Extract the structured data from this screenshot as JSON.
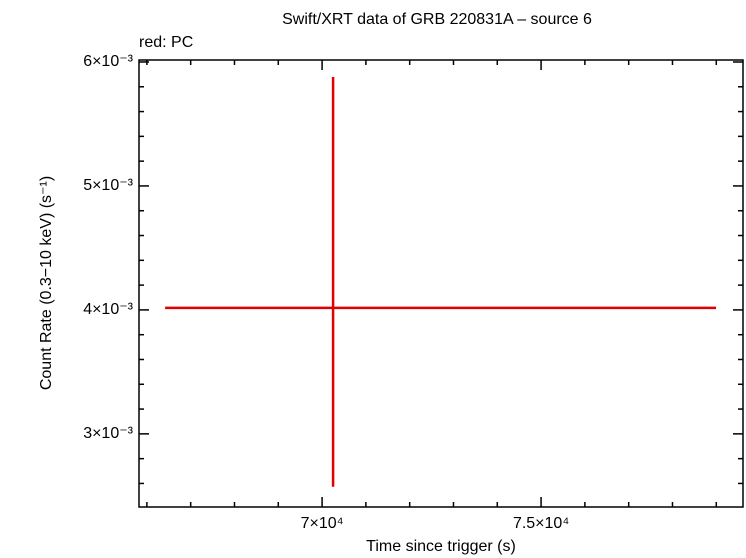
{
  "chart_data": {
    "type": "errorbar",
    "title": "Swift/XRT data of GRB 220831A – source 6",
    "annotation": "red: PC",
    "x_label": "Time since trigger (s)",
    "y_label": "Count Rate (0.3−10 keV) (s⁻¹)",
    "series": [
      {
        "color": "#e00000",
        "x": [
          70251
        ],
        "xerr_minus": [
          3835
        ],
        "xerr_plus": [
          8744
        ],
        "values": [
          0.004016
        ],
        "yerr_minus": [
          0.001443
        ],
        "yerr_plus": [
          0.001863
        ]
      }
    ],
    "xlim": [
      65820,
      79610
    ],
    "xticks": [
      {
        "value": 70000,
        "label": "7×10⁴"
      },
      {
        "value": 75000,
        "label": "7.5×10⁴"
      }
    ],
    "x_minor_ticks": [
      66000,
      67000,
      68000,
      69000,
      71000,
      72000,
      73000,
      74000,
      76000,
      77000,
      78000,
      79000
    ],
    "ylim": [
      0.00241,
      0.006016
    ],
    "yticks": [
      {
        "value": 0.003,
        "label": "3×10⁻³"
      },
      {
        "value": 0.004,
        "label": "4×10⁻³"
      },
      {
        "value": 0.005,
        "label": "5×10⁻³"
      },
      {
        "value": 0.006,
        "label": "6×10⁻³"
      }
    ],
    "y_minor_ticks": [
      0.0026,
      0.0028,
      0.0032,
      0.0034,
      0.0036,
      0.0038,
      0.0042,
      0.0044,
      0.0046,
      0.0048,
      0.0052,
      0.0054,
      0.0056,
      0.0058
    ]
  }
}
